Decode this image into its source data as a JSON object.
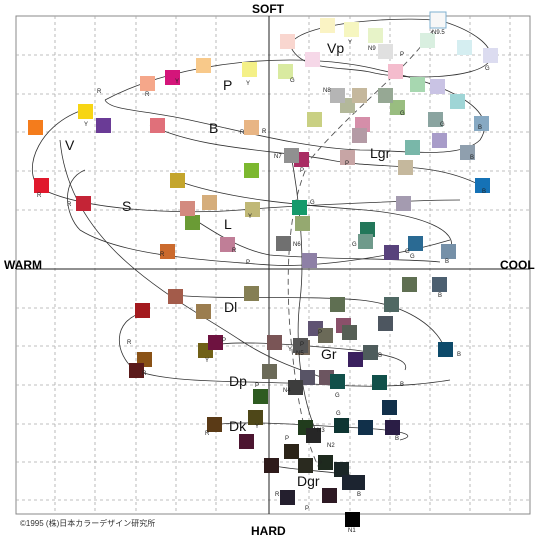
{
  "axes": {
    "top": "SOFT",
    "bottom": "HARD",
    "left": "WARM",
    "right": "COOL"
  },
  "copyright": "©1995 (株)日本カラーデザイン研究所",
  "tones": [
    "Vp",
    "P",
    "B",
    "Lgr",
    "V",
    "S",
    "L",
    "Dl",
    "Gr",
    "Dp",
    "Dk",
    "Dgr"
  ],
  "hue_labels": [
    "R",
    "Y",
    "G",
    "B",
    "P",
    "N9.5",
    "N9",
    "N8",
    "N7",
    "N6",
    "N5",
    "N4",
    "N3",
    "N2",
    "N1"
  ],
  "colors": {
    "Vp": [
      "#f9d6cf",
      "#faf3c4",
      "#f6f6c0",
      "#e7f3c8",
      "#d9efe0",
      "#d5eef1",
      "#dcdcf0",
      "#f6d8e8"
    ],
    "P": [
      "#f5a78a",
      "#f8c98a",
      "#f4f087",
      "#d9eaa0",
      "#a7d7b0",
      "#9fd5d6",
      "#c9c3e4",
      "#f4bccd"
    ],
    "B": [
      "#e0707a",
      "#e8b584",
      "#c9d083",
      "#99bd80",
      "#79b7a9",
      "#87a9c3",
      "#a89cc9",
      "#d58ea9"
    ],
    "Lgr": [
      "#c7a5a5",
      "#c5b89d",
      "#b3b89a",
      "#96a894",
      "#8aa4a0",
      "#8f9fae",
      "#a49bb0",
      "#b49aa5"
    ],
    "V": [
      "#e0182c",
      "#f47c1c",
      "#f7d513",
      "#7cb82f",
      "#159a6b",
      "#1572b6",
      "#6a3b96",
      "#d4157a"
    ],
    "S": [
      "#c42436",
      "#cb6a2d",
      "#c4a52c",
      "#6a9b35",
      "#23775a",
      "#2a6a93",
      "#58427c",
      "#a92d63"
    ],
    "L": [
      "#d38a7f",
      "#d5ad7b",
      "#c0b876",
      "#95a970",
      "#6f9a8b",
      "#7590a8",
      "#8e80a6",
      "#c07e97"
    ],
    "Dl": [
      "#a35b4a",
      "#9b7d4f",
      "#857f54",
      "#5f6f52",
      "#4f6863",
      "#4c5f70",
      "#5f5372",
      "#8a506a"
    ],
    "Gr": [
      "#7a5556",
      "#77695a",
      "#6b6a58",
      "#565f55",
      "#4e5c5c",
      "#4d5660",
      "#585466",
      "#6c5560"
    ],
    "Dp": [
      "#a31a1e",
      "#8a5216",
      "#706017",
      "#2e5b21",
      "#11504a",
      "#0d4a6a",
      "#3a205e",
      "#6e1240"
    ],
    "Dk": [
      "#5a1a1a",
      "#5a3a16",
      "#4e4718",
      "#213c1d",
      "#0e3532",
      "#11304a",
      "#2a1d45",
      "#4c1530"
    ],
    "Dgr": [
      "#2e1a1a",
      "#2c2418",
      "#2a2a1f",
      "#1e2a1e",
      "#1a2626",
      "#1c2430",
      "#241f2e",
      "#2e1a24"
    ],
    "N": [
      "#f7f7f7",
      "#e0e0e0",
      "#b5b5b5",
      "#909090",
      "#707070",
      "#555555",
      "#3d3d3d",
      "#262626",
      "#000000"
    ]
  }
}
